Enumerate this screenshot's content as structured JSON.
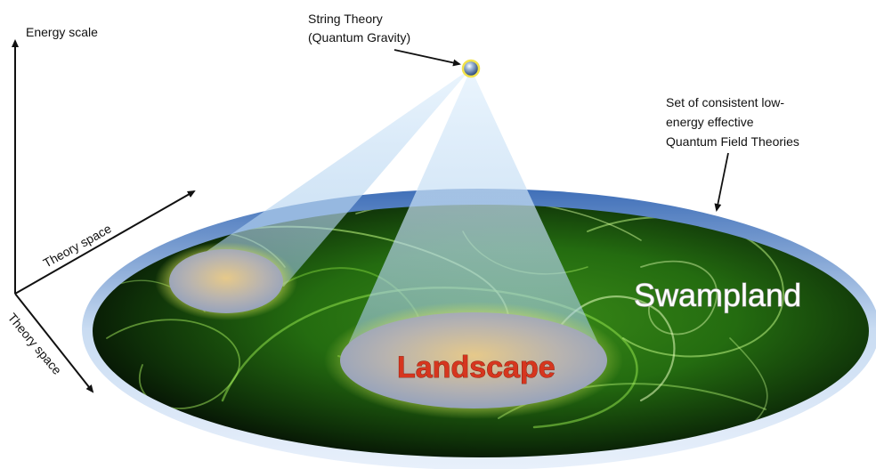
{
  "labels": {
    "energy_axis": "Energy scale",
    "theory_space_diagonal": "Theory space",
    "theory_space_down": "Theory space",
    "string_theory_line1": "String Theory",
    "string_theory_line2": "(Quantum Gravity)",
    "qft_line1": "Set of consistent low-",
    "qft_line2": "energy effective",
    "qft_line3": "Quantum Field Theories",
    "swampland": "Swampland",
    "landscape": "Landscape"
  },
  "colors": {
    "swampland_green": "#3f9a1e",
    "swampland_dark": "#060d04",
    "rim_blue": "#4f7fc3",
    "landscape_text": "#d6361f",
    "landscape_fill": "#a8b4c8",
    "cone_blue": "#b8d8f2",
    "string_point": "#f2e24a"
  },
  "icons": {
    "string_point": "sphere-icon"
  }
}
